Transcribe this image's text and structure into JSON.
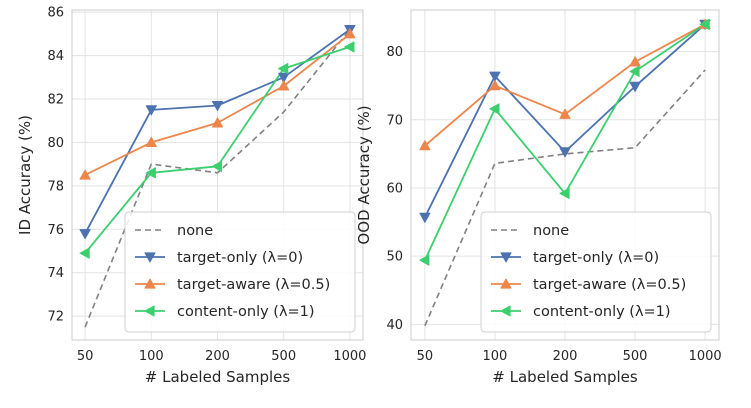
{
  "chart_data": [
    {
      "type": "line",
      "title": "",
      "xlabel": "# Labeled Samples",
      "ylabel": "ID Accuracy (%)",
      "categories": [
        "50",
        "100",
        "200",
        "500",
        "1000"
      ],
      "ylim": [
        70.9,
        86.1
      ],
      "yticks": [
        72,
        74,
        76,
        78,
        80,
        82,
        84,
        86
      ],
      "grid": true,
      "legend_position": "lower-right",
      "series": [
        {
          "name": "none",
          "values": [
            71.5,
            79.0,
            78.6,
            81.4,
            85.2
          ],
          "color": "#808080",
          "style": "dashed",
          "marker": "none"
        },
        {
          "name": "target-only (λ=0)",
          "values": [
            75.8,
            81.5,
            81.7,
            83.0,
            85.2
          ],
          "color": "#4c72b0",
          "style": "solid",
          "marker": "triangle-down"
        },
        {
          "name": "target-aware (λ=0.5)",
          "values": [
            78.5,
            80.0,
            80.9,
            82.6,
            85.0
          ],
          "color": "#ee854a",
          "style": "solid",
          "marker": "triangle-up"
        },
        {
          "name": "content-only (λ=1)",
          "values": [
            74.9,
            78.6,
            78.9,
            83.4,
            84.4
          ],
          "color": "#3bcf6e",
          "style": "solid",
          "marker": "triangle-left"
        }
      ]
    },
    {
      "type": "line",
      "title": "",
      "xlabel": "# Labeled Samples",
      "ylabel": "OOD Accuracy (%)",
      "categories": [
        "50",
        "100",
        "200",
        "500",
        "1000"
      ],
      "ylim": [
        37.7,
        86.1
      ],
      "yticks": [
        40,
        50,
        60,
        70,
        80
      ],
      "grid": true,
      "legend_position": "lower-right",
      "series": [
        {
          "name": "none",
          "values": [
            39.8,
            63.6,
            65.0,
            65.9,
            77.3
          ],
          "color": "#808080",
          "style": "dashed",
          "marker": "none"
        },
        {
          "name": "target-only (λ=0)",
          "values": [
            55.7,
            76.4,
            65.3,
            74.9,
            84.0
          ],
          "color": "#4c72b0",
          "style": "solid",
          "marker": "triangle-down"
        },
        {
          "name": "target-aware (λ=0.5)",
          "values": [
            66.2,
            75.0,
            70.8,
            78.5,
            84.0
          ],
          "color": "#ee854a",
          "style": "solid",
          "marker": "triangle-up"
        },
        {
          "name": "content-only (λ=1)",
          "values": [
            49.4,
            71.6,
            59.2,
            77.1,
            84.0
          ],
          "color": "#3bcf6e",
          "style": "solid",
          "marker": "triangle-left"
        }
      ]
    }
  ]
}
